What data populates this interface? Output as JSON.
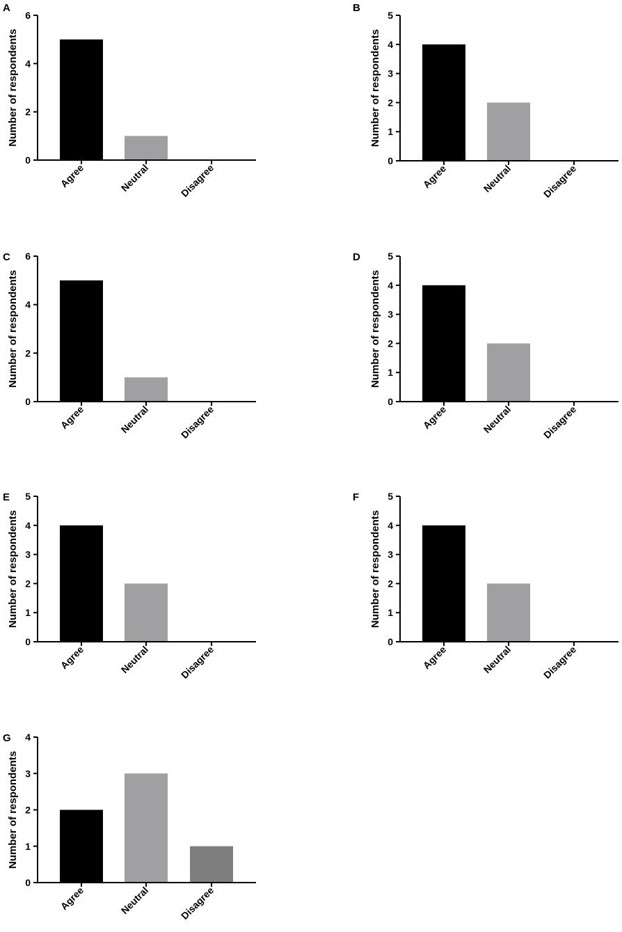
{
  "chart_data": [
    {
      "type": "bar",
      "panel": "A",
      "categories": [
        "Agree",
        "Neutral",
        "Disagree"
      ],
      "values": [
        5,
        1,
        0
      ],
      "ylabel": "Number of respondents",
      "ylim": [
        0,
        6
      ],
      "yticks": [
        0,
        2,
        4,
        6
      ],
      "colors": [
        "#000000",
        "#a0a0a3",
        "#7f7f7f"
      ],
      "grid": false
    },
    {
      "type": "bar",
      "panel": "B",
      "categories": [
        "Agree",
        "Neutral",
        "Disagree"
      ],
      "values": [
        4,
        2,
        0
      ],
      "ylabel": "Number of respondents",
      "ylim": [
        0,
        5
      ],
      "yticks": [
        0,
        1,
        2,
        3,
        4,
        5
      ],
      "colors": [
        "#000000",
        "#a0a0a3",
        "#7f7f7f"
      ],
      "grid": false
    },
    {
      "type": "bar",
      "panel": "C",
      "categories": [
        "Agree",
        "Neutral",
        "Disagree"
      ],
      "values": [
        5,
        1,
        0
      ],
      "ylabel": "Number of respondents",
      "ylim": [
        0,
        6
      ],
      "yticks": [
        0,
        2,
        4,
        6
      ],
      "colors": [
        "#000000",
        "#a0a0a3",
        "#7f7f7f"
      ],
      "grid": false
    },
    {
      "type": "bar",
      "panel": "D",
      "categories": [
        "Agree",
        "Neutral",
        "Disagree"
      ],
      "values": [
        4,
        2,
        0
      ],
      "ylabel": "Number of respondents",
      "ylim": [
        0,
        5
      ],
      "yticks": [
        0,
        1,
        2,
        3,
        4,
        5
      ],
      "colors": [
        "#000000",
        "#a0a0a3",
        "#7f7f7f"
      ],
      "grid": false
    },
    {
      "type": "bar",
      "panel": "E",
      "categories": [
        "Agree",
        "Neutral",
        "Disagree"
      ],
      "values": [
        4,
        2,
        0
      ],
      "ylabel": "Number of respondents",
      "ylim": [
        0,
        5
      ],
      "yticks": [
        0,
        1,
        2,
        3,
        4,
        5
      ],
      "colors": [
        "#000000",
        "#a0a0a3",
        "#7f7f7f"
      ],
      "grid": false
    },
    {
      "type": "bar",
      "panel": "F",
      "categories": [
        "Agree",
        "Neutral",
        "Disagree"
      ],
      "values": [
        4,
        2,
        0
      ],
      "ylabel": "Number of respondents",
      "ylim": [
        0,
        5
      ],
      "yticks": [
        0,
        1,
        2,
        3,
        4,
        5
      ],
      "colors": [
        "#000000",
        "#a0a0a3",
        "#7f7f7f"
      ],
      "grid": false
    },
    {
      "type": "bar",
      "panel": "G",
      "categories": [
        "Agree",
        "Neutral",
        "Disagree"
      ],
      "values": [
        2,
        3,
        1
      ],
      "ylabel": "Number of respondents",
      "ylim": [
        0,
        4
      ],
      "yticks": [
        0,
        1,
        2,
        3,
        4
      ],
      "colors": [
        "#000000",
        "#a0a0a3",
        "#7f7f7f"
      ],
      "grid": false
    }
  ]
}
